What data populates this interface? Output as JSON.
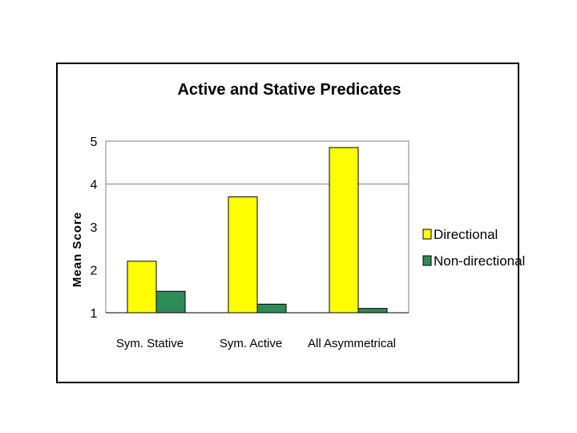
{
  "chart_data": {
    "type": "bar",
    "title": "Active and Stative Predicates",
    "xlabel": "",
    "ylabel": "Mean Score",
    "categories": [
      "Sym. Stative",
      "Sym. Active",
      "All Asymmetrical"
    ],
    "series": [
      {
        "name": "Directional",
        "color": "#ffff00",
        "values": [
          2.2,
          3.7,
          4.85
        ]
      },
      {
        "name": "Non-directional",
        "color": "#2e8b57",
        "values": [
          1.5,
          1.2,
          1.1
        ]
      }
    ],
    "ylim": [
      1,
      5
    ],
    "yticks": [
      "1",
      "2",
      "3",
      "4",
      "5"
    ],
    "grid": "horizontal at 4 and 5",
    "legend_position": "right",
    "background": "#ffffff"
  }
}
